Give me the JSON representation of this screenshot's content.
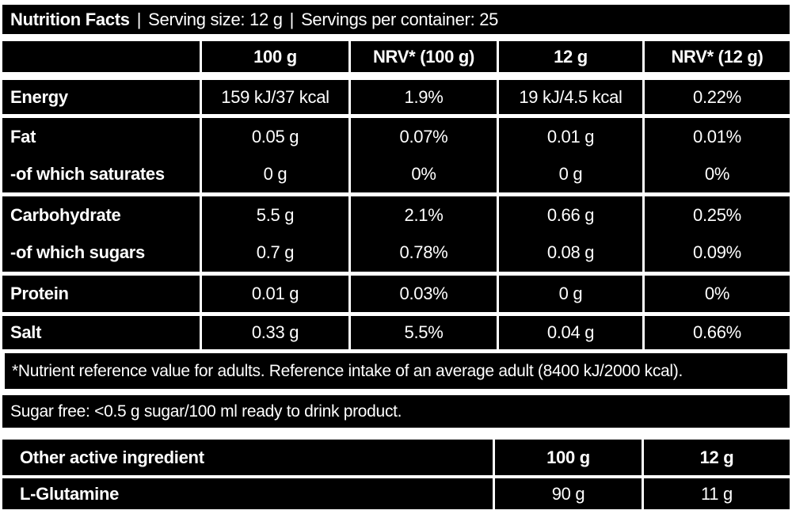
{
  "colors": {
    "panel_bg": "#000000",
    "text": "#ffffff",
    "page_bg": "#ffffff"
  },
  "header": {
    "title": "Nutrition Facts",
    "separator": "|",
    "serving_size": "Serving size: 12 g",
    "servings_per_container": "Servings per container: 25"
  },
  "nutrition_table": {
    "columns": [
      "",
      "100 g",
      "NRV* (100 g)",
      "12 g",
      "NRV* (12 g)"
    ],
    "groups": [
      {
        "rows": [
          {
            "label": "Energy",
            "values": [
              "159 kJ/37 kcal",
              "1.9%",
              "19 kJ/4.5 kcal",
              "0.22%"
            ]
          }
        ]
      },
      {
        "rows": [
          {
            "label": "Fat",
            "values": [
              "0.05 g",
              "0.07%",
              "0.01 g",
              "0.01%"
            ]
          },
          {
            "label": "-of which saturates",
            "values": [
              "0 g",
              "0%",
              "0 g",
              "0%"
            ]
          }
        ]
      },
      {
        "rows": [
          {
            "label": "Carbohydrate",
            "values": [
              "5.5 g",
              "2.1%",
              "0.66 g",
              "0.25%"
            ]
          },
          {
            "label": "-of which sugars",
            "values": [
              "0.7 g",
              "0.78%",
              "0.08 g",
              "0.09%"
            ]
          }
        ]
      },
      {
        "rows": [
          {
            "label": "Protein",
            "values": [
              "0.01 g",
              "0.03%",
              "0 g",
              "0%"
            ]
          }
        ]
      },
      {
        "rows": [
          {
            "label": "Salt",
            "values": [
              "0.33 g",
              "5.5%",
              "0.04 g",
              "0.66%"
            ]
          }
        ]
      }
    ],
    "footnote": "*Nutrient reference value for adults. Reference intake of an average adult (8400 kJ/2000 kcal)."
  },
  "sugar_free_note": "Sugar free: <0.5 g sugar/100 ml ready to drink product.",
  "other_ingredients_table": {
    "columns": [
      "Other active ingredient",
      "100 g",
      "12 g"
    ],
    "rows": [
      {
        "label": "L-Glutamine",
        "values": [
          "90 g",
          "11 g"
        ]
      }
    ]
  }
}
